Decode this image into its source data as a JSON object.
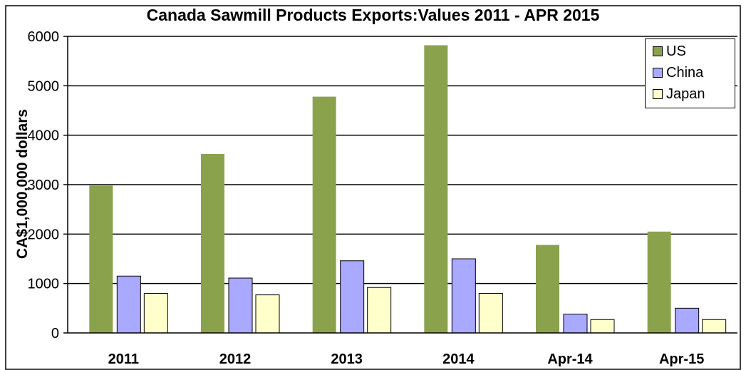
{
  "chart_data": {
    "type": "bar",
    "title": "Canada Sawmill Products Exports:Values 2011 - APR 2015",
    "ylabel": "CA$1,000,000 dollars",
    "xlabel": "",
    "categories": [
      "2011",
      "2012",
      "2013",
      "2014",
      "Apr-14",
      "Apr-15"
    ],
    "ylim": [
      0,
      6000
    ],
    "yticks": [
      0,
      1000,
      2000,
      3000,
      4000,
      5000,
      6000
    ],
    "grid": true,
    "legend_position": "top-right",
    "series": [
      {
        "name": "US",
        "color": "#8BA24C",
        "values": [
          2980,
          3620,
          4780,
          5820,
          1780,
          2050
        ]
      },
      {
        "name": "China",
        "color": "#A9A9FF",
        "values": [
          1150,
          1110,
          1460,
          1500,
          380,
          500
        ]
      },
      {
        "name": "Japan",
        "color": "#FFFFCC",
        "values": [
          800,
          770,
          920,
          800,
          270,
          270
        ]
      }
    ]
  }
}
